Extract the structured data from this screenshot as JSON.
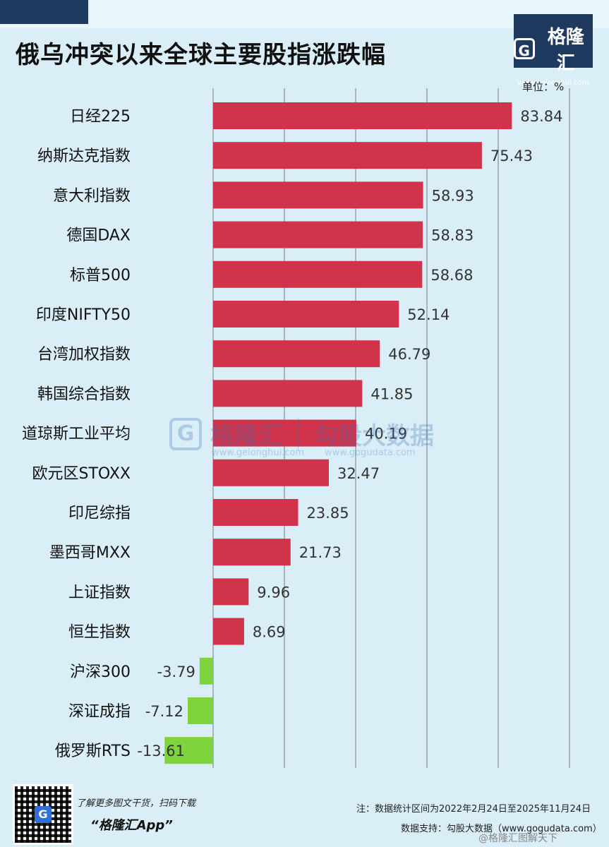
{
  "header": {
    "title": "俄乌冲突以来全球主要股指涨跌幅",
    "logo_text": "格隆汇",
    "logo_mark": "G",
    "logo_url": "www.gelonghui.com",
    "unit": "单位：%"
  },
  "watermark": {
    "mark": "G",
    "left_text": "格隆汇",
    "left_url": "www.gelonghui.com",
    "right_text": "勾股大数据",
    "right_url": "www.gogudata.com"
  },
  "footer": {
    "qr_badge": "G",
    "promo_line1": "了解更多图文干货，扫码下载",
    "promo_line2": "“格隆汇App”",
    "note_line1": "注：数据统计区间为2022年2月24日至2025年11月24日",
    "note_line2": "数据支持：勾股大数据（www.gogudata.com）",
    "weibo_tag": "@格隆汇图解天下"
  },
  "colors": {
    "positive": "#d0334a",
    "negative": "#7ed43a",
    "gridline": "#6f7f8a"
  },
  "chart_data": {
    "type": "bar",
    "orientation": "horizontal",
    "title": "俄乌冲突以来全球主要股指涨跌幅",
    "unit": "%",
    "categories": [
      "日经225",
      "纳斯达克指数",
      "意大利指数",
      "德国DAX",
      "标普500",
      "印度NIFTY50",
      "台湾加权指数",
      "韩国综合指数",
      "道琼斯工业平均",
      "欧元区STOXX",
      "印尼综指",
      "墨西哥MXX",
      "上证指数",
      "恒生指数",
      "沪深300",
      "深证成指",
      "俄罗斯RTS"
    ],
    "values": [
      83.84,
      75.43,
      58.93,
      58.83,
      58.68,
      52.14,
      46.79,
      41.85,
      40.19,
      32.47,
      23.85,
      21.73,
      9.96,
      8.69,
      -3.79,
      -7.12,
      -13.61
    ],
    "value_labels": [
      "83.84",
      "75.43",
      "58.93",
      "58.83",
      "58.68",
      "52.14",
      "46.79",
      "41.85",
      "40.19",
      "32.47",
      "23.85",
      "21.73",
      "9.96",
      "8.69",
      "-3.79",
      "-7.12",
      "-13.61"
    ],
    "xlim": [
      0,
      100
    ],
    "grid": true
  }
}
